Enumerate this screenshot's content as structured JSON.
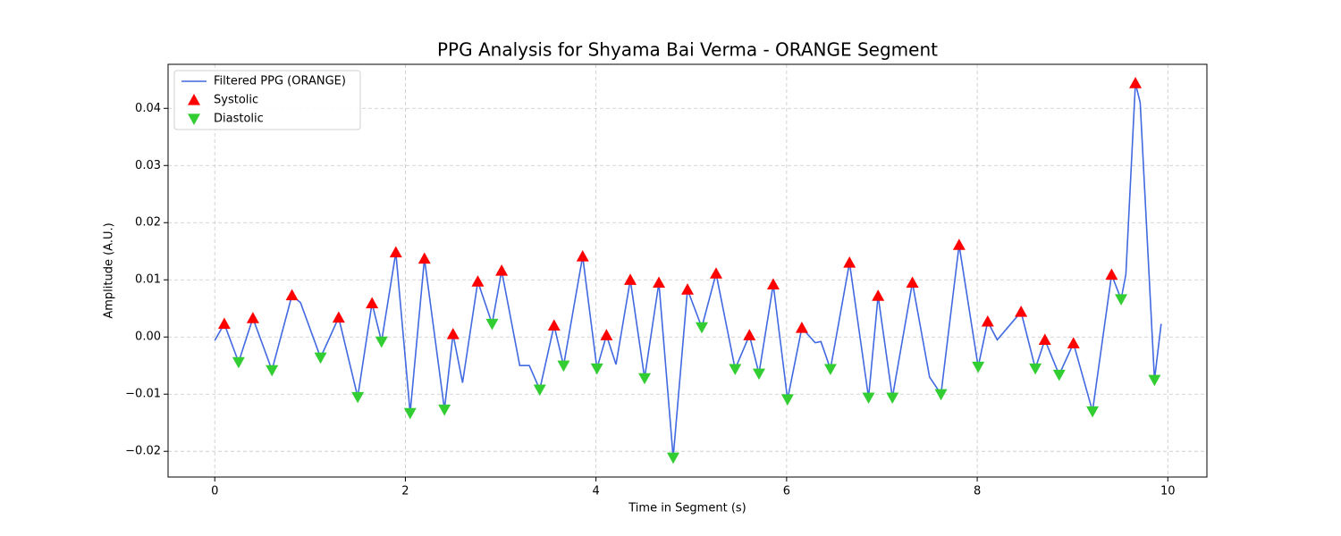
{
  "chart_data": {
    "type": "line",
    "title": "PPG Analysis for Shyama Bai Verma - ORANGE Segment",
    "x_label": "Time in Segment (s)",
    "y_label": "Amplitude (A.U.)",
    "xlim": [
      -0.49,
      10.41
    ],
    "ylim": [
      -0.0245,
      0.0477
    ],
    "xticks": [
      0,
      2,
      4,
      6,
      8,
      10
    ],
    "yticks": [
      {
        "value": -0.02,
        "label": "−0.02"
      },
      {
        "value": -0.01,
        "label": "−0.01"
      },
      {
        "value": 0,
        "label": "0.00"
      },
      {
        "value": 0.01,
        "label": "0.01"
      },
      {
        "value": 0.02,
        "label": "0.02"
      },
      {
        "value": 0.03,
        "label": "0.03"
      },
      {
        "value": 0.04,
        "label": "0.04"
      }
    ],
    "grid": true,
    "legend_position": "upper-left",
    "series": [
      {
        "name": "Filtered PPG (ORANGE)",
        "type": "line",
        "color": "#4169e1",
        "x": [
          0,
          0.1,
          0.25,
          0.4,
          0.6,
          0.81,
          0.9,
          1.11,
          1.3,
          1.5,
          1.65,
          1.75,
          1.9,
          2.05,
          2.2,
          2.41,
          2.5,
          2.6,
          2.76,
          2.91,
          3.01,
          3.2,
          3.3,
          3.41,
          3.56,
          3.66,
          3.86,
          4.01,
          4.11,
          4.21,
          4.36,
          4.51,
          4.66,
          4.81,
          4.96,
          5.11,
          5.26,
          5.46,
          5.61,
          5.71,
          5.86,
          6.01,
          6.16,
          6.3,
          6.36,
          6.46,
          6.66,
          6.86,
          6.96,
          7.11,
          7.32,
          7.5,
          7.62,
          7.81,
          8.01,
          8.11,
          8.21,
          8.46,
          8.61,
          8.71,
          8.86,
          9.01,
          9.21,
          9.41,
          9.51,
          9.56,
          9.66,
          9.71,
          9.86,
          9.93
        ],
        "values": [
          -0.0006,
          0.0023,
          -0.0044,
          0.0033,
          -0.0058,
          0.0073,
          0.006,
          -0.0036,
          0.0034,
          -0.0105,
          0.0059,
          -0.0008,
          0.0148,
          -0.0133,
          0.0137,
          -0.0127,
          0.0005,
          -0.008,
          0.0097,
          0.0023,
          0.0116,
          -0.005,
          -0.005,
          -0.0092,
          0.002,
          -0.005,
          0.0141,
          -0.0055,
          0.0003,
          -0.0048,
          0.01,
          -0.0072,
          0.0095,
          -0.0211,
          0.0083,
          0.0017,
          0.0111,
          -0.0056,
          0.0003,
          -0.0064,
          0.0092,
          -0.0109,
          0.0016,
          -0.001,
          -0.0008,
          -0.0056,
          0.013,
          -0.0106,
          0.0072,
          -0.0106,
          0.0095,
          -0.007,
          -0.01,
          0.0161,
          -0.0052,
          0.0027,
          -0.0005,
          0.0044,
          -0.0055,
          -0.0005,
          -0.0066,
          -0.0011,
          -0.013,
          0.0109,
          0.0066,
          0.011,
          0.0444,
          0.041,
          -0.0075,
          0.0023
        ]
      },
      {
        "name": "Systolic",
        "type": "scatter",
        "marker": "up",
        "color": "#ff0000",
        "x": [
          0.1,
          0.4,
          0.81,
          1.3,
          1.65,
          1.9,
          2.2,
          2.5,
          2.76,
          3.01,
          3.56,
          3.86,
          4.11,
          4.36,
          4.66,
          4.96,
          5.26,
          5.61,
          5.86,
          6.16,
          6.66,
          6.96,
          7.32,
          7.81,
          8.11,
          8.46,
          8.71,
          9.01,
          9.41,
          9.66
        ],
        "values": [
          0.0023,
          0.0033,
          0.0073,
          0.0034,
          0.0059,
          0.0148,
          0.0137,
          0.0005,
          0.0097,
          0.0116,
          0.002,
          0.0141,
          0.0003,
          0.01,
          0.0095,
          0.0083,
          0.0111,
          0.0003,
          0.0092,
          0.0016,
          0.013,
          0.0072,
          0.0095,
          0.0161,
          0.0027,
          0.0044,
          -0.0005,
          -0.0011,
          0.0109,
          0.0444
        ]
      },
      {
        "name": "Diastolic",
        "type": "scatter",
        "marker": "down",
        "color": "#32cd32",
        "x": [
          0.25,
          0.6,
          1.11,
          1.5,
          1.75,
          2.05,
          2.41,
          2.91,
          3.41,
          3.66,
          4.01,
          4.51,
          4.81,
          5.11,
          5.46,
          5.71,
          6.01,
          6.46,
          6.86,
          7.11,
          7.62,
          8.01,
          8.61,
          8.86,
          9.21,
          9.51,
          9.86
        ],
        "values": [
          -0.0044,
          -0.0058,
          -0.0036,
          -0.0105,
          -0.0008,
          -0.0133,
          -0.0127,
          0.0023,
          -0.0092,
          -0.005,
          -0.0055,
          -0.0072,
          -0.0211,
          0.0017,
          -0.0056,
          -0.0064,
          -0.0109,
          -0.0056,
          -0.0106,
          -0.0106,
          -0.01,
          -0.0052,
          -0.0055,
          -0.0066,
          -0.013,
          0.0066,
          -0.0075
        ]
      }
    ]
  }
}
